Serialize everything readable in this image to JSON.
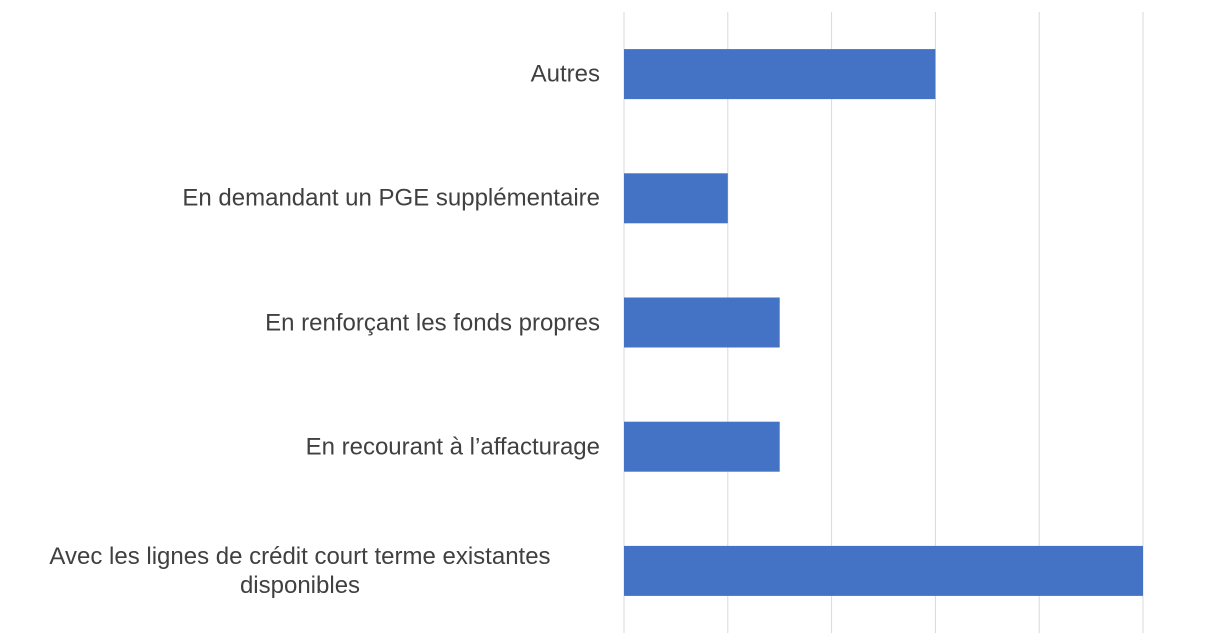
{
  "chart_data": {
    "type": "bar",
    "orientation": "horizontal",
    "categories": [
      "Autres",
      "En demandant un PGE supplémentaire",
      "En renforçant les fonds propres",
      "En recourant à l’affacturage",
      "Avec les lignes de crédit court terme existantes disponibles"
    ],
    "values": [
      3,
      1,
      1.5,
      1.5,
      5
    ],
    "color": "#4472c4",
    "xlim": [
      0,
      5
    ],
    "xticks": [
      0,
      1,
      2,
      3,
      4,
      5
    ],
    "grid": true
  }
}
